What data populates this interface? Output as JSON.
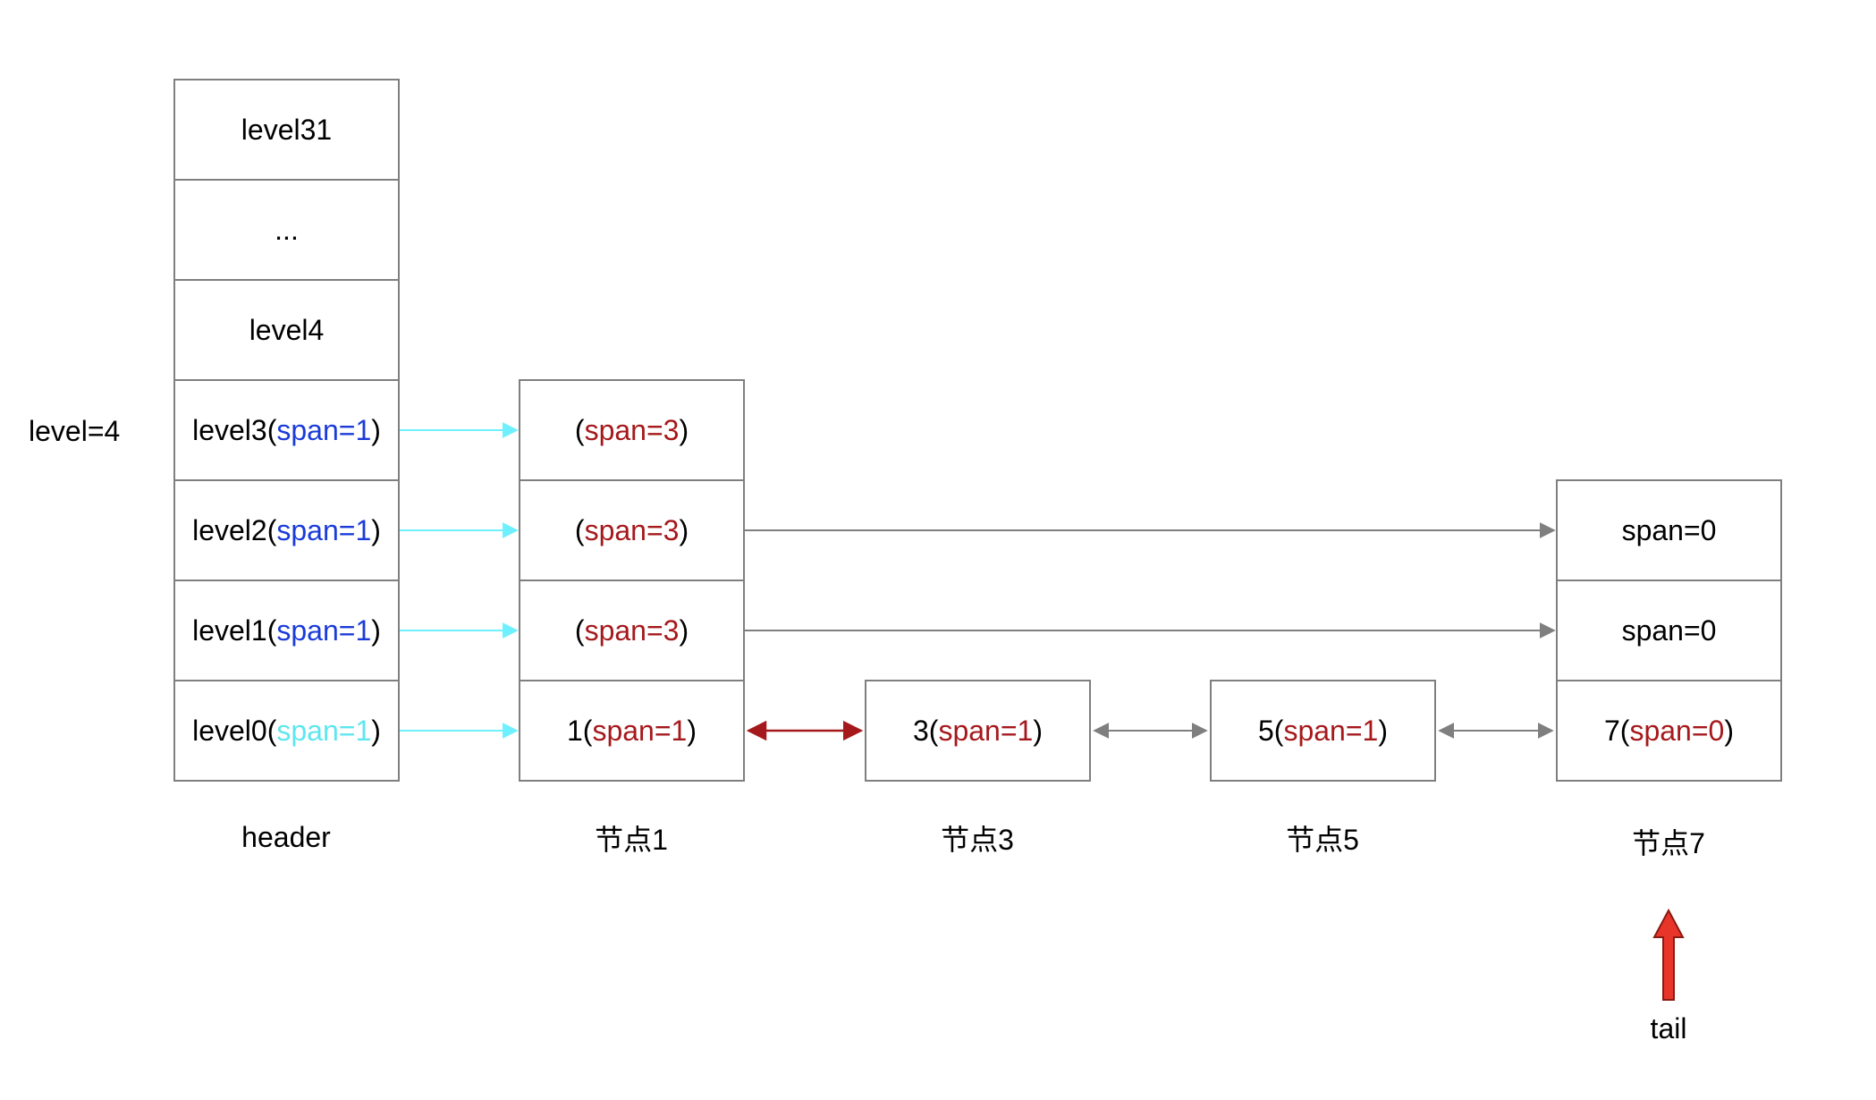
{
  "level_label": "level=4",
  "colors": {
    "border": "#7f7f7f",
    "span_blue": "#1a3bd9",
    "span_cyan": "#5ee6f0",
    "span_red": "#a5191c",
    "arrow_cyan": "#6ff0ff",
    "arrow_red": "#a5191c",
    "arrow_gray": "#7f7f7f",
    "tail_arrow": "#e8352a"
  },
  "header": {
    "caption": "header",
    "rows": [
      {
        "prefix": "level31",
        "span": "",
        "suffix": ""
      },
      {
        "prefix": "...",
        "span": "",
        "suffix": ""
      },
      {
        "prefix": "level4",
        "span": "",
        "suffix": ""
      },
      {
        "prefix": "level3(",
        "span": "span=1",
        "suffix": ")"
      },
      {
        "prefix": "level2(",
        "span": "span=1",
        "suffix": ")"
      },
      {
        "prefix": "level1(",
        "span": "span=1",
        "suffix": ")"
      },
      {
        "prefix": "level0(",
        "span": "span=1",
        "suffix": ")"
      }
    ]
  },
  "node1": {
    "caption": "节点1",
    "rows": [
      {
        "prefix": "(",
        "span": "span=3",
        "suffix": ")"
      },
      {
        "prefix": "(",
        "span": "span=3",
        "suffix": ")"
      },
      {
        "prefix": "(",
        "span": "span=3",
        "suffix": ")"
      },
      {
        "prefix": "1(",
        "span": "span=1",
        "suffix": ")"
      }
    ]
  },
  "node3": {
    "caption": "节点3",
    "rows": [
      {
        "prefix": "3(",
        "span": "span=1",
        "suffix": ")"
      }
    ]
  },
  "node5": {
    "caption": "节点5",
    "rows": [
      {
        "prefix": "5(",
        "span": "span=1",
        "suffix": ")"
      }
    ]
  },
  "node7": {
    "caption": "节点7",
    "rows": [
      {
        "prefix": "span=0",
        "span": "",
        "suffix": ""
      },
      {
        "prefix": "span=0",
        "span": "",
        "suffix": ""
      },
      {
        "prefix": "7(",
        "span": "span=0",
        "suffix": ")"
      }
    ]
  },
  "tail_label": "tail"
}
